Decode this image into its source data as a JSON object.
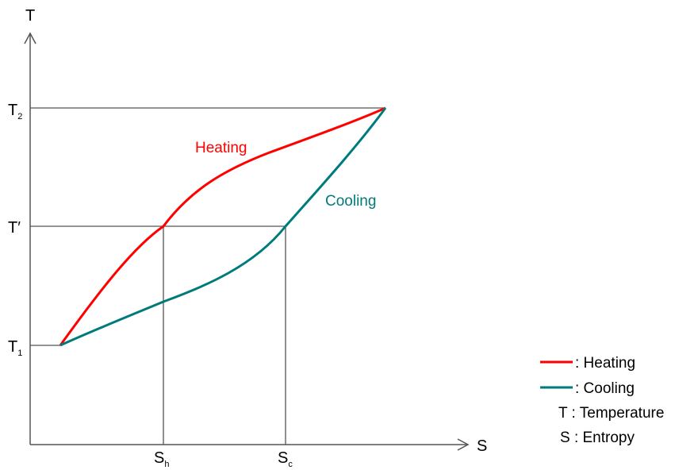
{
  "axes": {
    "y_label": "T",
    "x_label": "S"
  },
  "y_ticks": {
    "t2": {
      "main": "T",
      "sub": "2"
    },
    "tprime": "T′",
    "t1": {
      "main": "T",
      "sub": "1"
    }
  },
  "x_ticks": {
    "sh": {
      "main": "S",
      "sub": "h"
    },
    "sc": {
      "main": "S",
      "sub": "c"
    }
  },
  "curves": {
    "heating": {
      "label": "Heating",
      "color": "#ff0000"
    },
    "cooling": {
      "label": "Cooling",
      "color": "#007b7b"
    }
  },
  "legend": [
    {
      "key": "heating",
      "text": ": Heating"
    },
    {
      "key": "cooling",
      "text": ": Cooling"
    },
    {
      "key": "",
      "text": "T : Temperature"
    },
    {
      "key": "",
      "text": "S : Entropy"
    }
  ],
  "colors": {
    "axis": "#555555",
    "guide": "#555555"
  }
}
